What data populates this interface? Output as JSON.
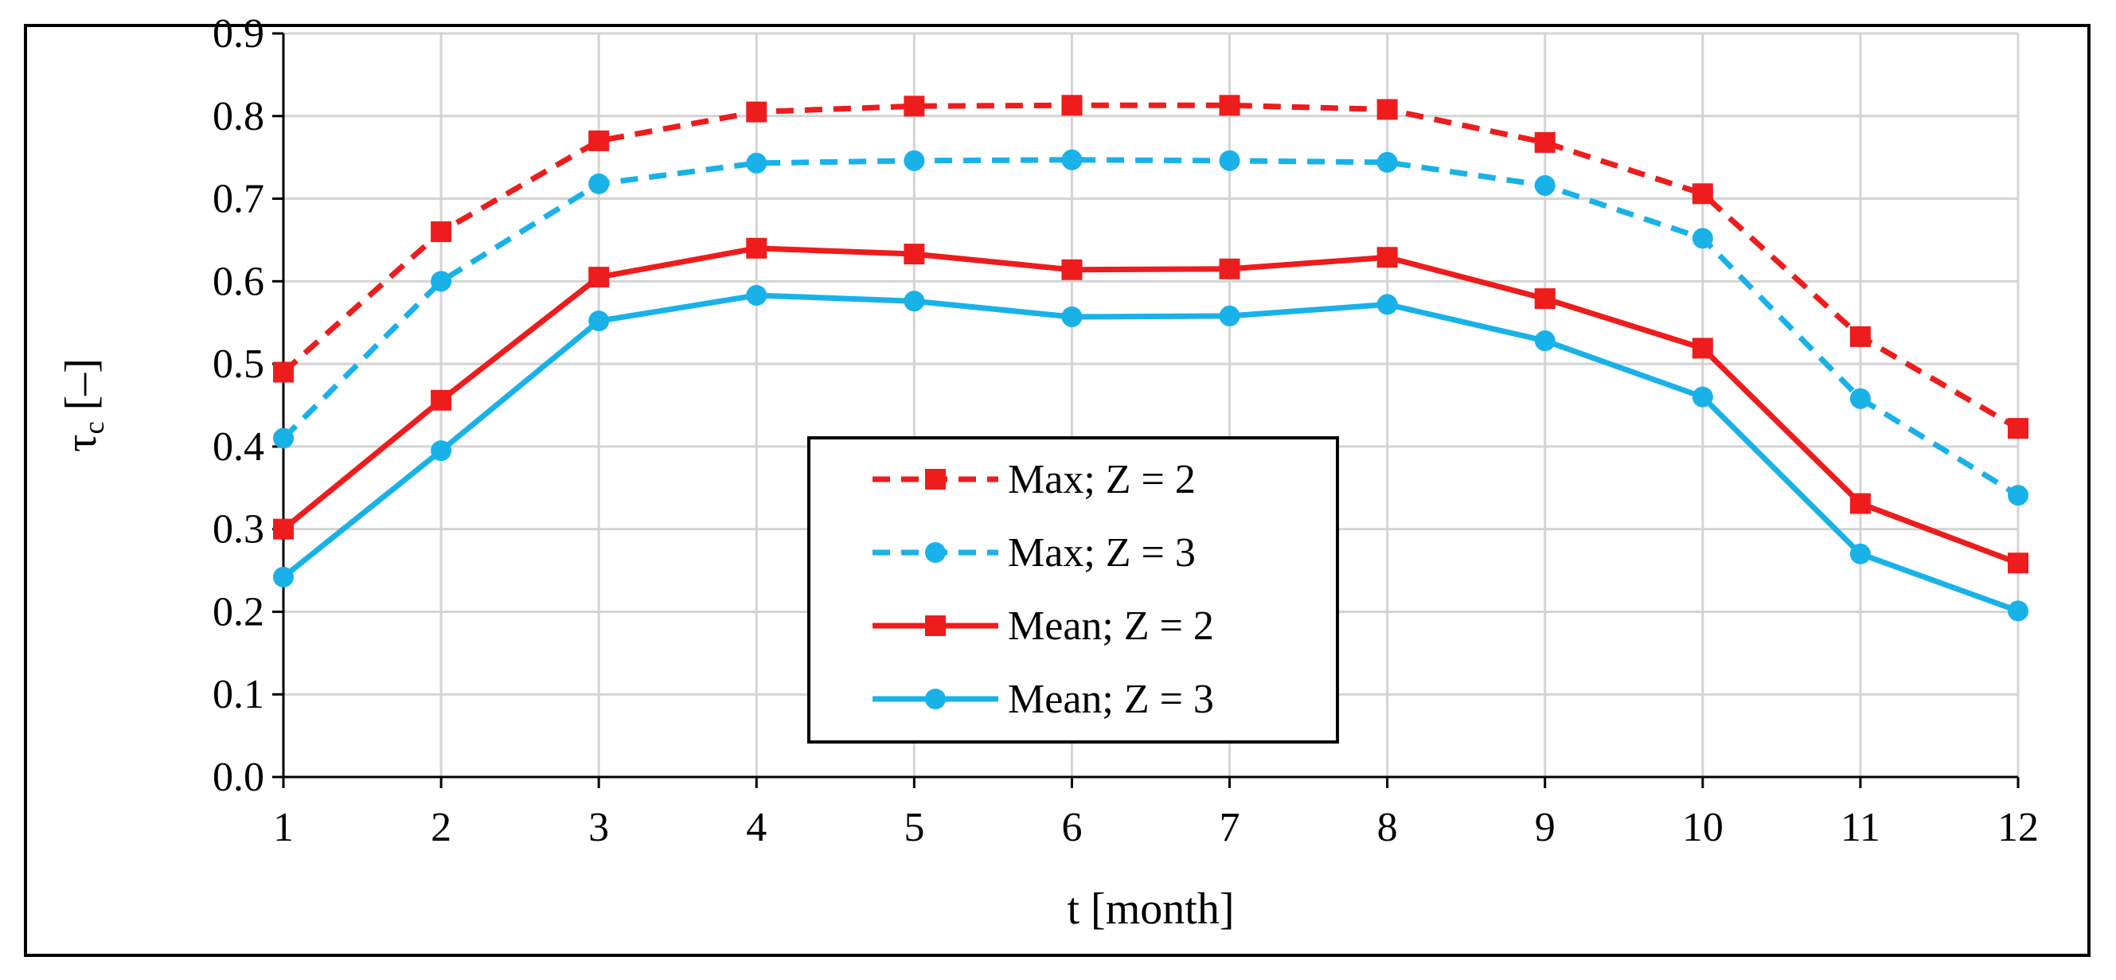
{
  "chart_data": {
    "type": "line",
    "title": "",
    "xlabel": "t [month]",
    "ylabel_symbol": "τ",
    "ylabel_subscript": "c",
    "ylabel_unit": "[–]",
    "categories": [
      1,
      2,
      3,
      4,
      5,
      6,
      7,
      8,
      9,
      10,
      11,
      12
    ],
    "x_tick_labels": [
      "1",
      "2",
      "3",
      "4",
      "5",
      "6",
      "7",
      "8",
      "9",
      "10",
      "11",
      "12"
    ],
    "ylim": [
      0.0,
      0.9
    ],
    "y_tick_labels": [
      "0.0",
      "0.1",
      "0.2",
      "0.3",
      "0.4",
      "0.5",
      "0.6",
      "0.7",
      "0.8",
      "0.9"
    ],
    "grid": true,
    "legend_position": "center",
    "series": [
      {
        "name": "Max; Z = 2",
        "color": "#ee1c1c",
        "dash": "dashed",
        "marker": "square",
        "values": [
          0.49,
          0.66,
          0.77,
          0.805,
          0.812,
          0.813,
          0.813,
          0.808,
          0.768,
          0.706,
          0.533,
          0.422
        ]
      },
      {
        "name": "Max; Z = 3",
        "color": "#18b2e8",
        "dash": "dashed",
        "marker": "circle",
        "values": [
          0.41,
          0.6,
          0.718,
          0.743,
          0.746,
          0.747,
          0.746,
          0.744,
          0.716,
          0.652,
          0.458,
          0.341
        ]
      },
      {
        "name": "Mean; Z = 2",
        "color": "#ee1c1c",
        "dash": "solid",
        "marker": "square",
        "values": [
          0.3,
          0.456,
          0.605,
          0.64,
          0.633,
          0.614,
          0.615,
          0.629,
          0.579,
          0.519,
          0.331,
          0.259
        ]
      },
      {
        "name": "Mean; Z = 3",
        "color": "#18b2e8",
        "dash": "solid",
        "marker": "circle",
        "values": [
          0.242,
          0.395,
          0.552,
          0.583,
          0.576,
          0.557,
          0.558,
          0.572,
          0.528,
          0.46,
          0.27,
          0.201
        ]
      }
    ]
  }
}
